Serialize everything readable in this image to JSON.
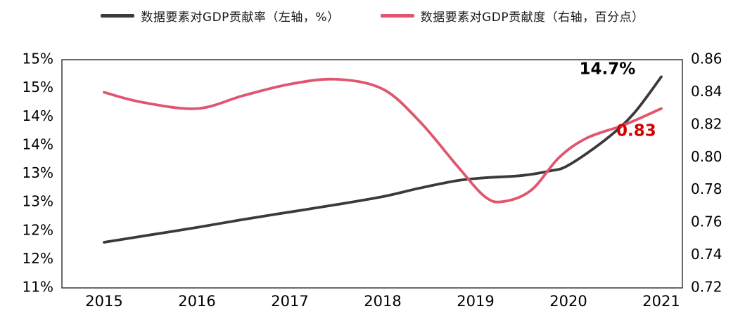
{
  "legend": [
    {
      "label": "数据要素对GDP贡献率（左轴，%）",
      "color": "#3a3a3a"
    },
    {
      "label": "数据要素对GDP贡献度（右轴，百分点）",
      "color": "#e0566f"
    }
  ],
  "chart_data": {
    "type": "line",
    "title": "",
    "x_ticks": [
      "2015",
      "2016",
      "2017",
      "2018",
      "2019",
      "2020",
      "2021"
    ],
    "left_axis": {
      "range": [
        11,
        15
      ],
      "ticks": [
        {
          "label": "15%",
          "value": 15
        },
        {
          "label": "15%",
          "value": 14.5
        },
        {
          "label": "14%",
          "value": 14
        },
        {
          "label": "14%",
          "value": 13.5
        },
        {
          "label": "13%",
          "value": 13
        },
        {
          "label": "13%",
          "value": 12.5
        },
        {
          "label": "12%",
          "value": 12
        },
        {
          "label": "12%",
          "value": 11.5
        },
        {
          "label": "11%",
          "value": 11
        }
      ]
    },
    "right_axis": {
      "range": [
        0.72,
        0.86
      ],
      "ticks": [
        {
          "label": "0.86",
          "value": 0.86
        },
        {
          "label": "0.84",
          "value": 0.84
        },
        {
          "label": "0.82",
          "value": 0.82
        },
        {
          "label": "0.80",
          "value": 0.8
        },
        {
          "label": "0.78",
          "value": 0.78
        },
        {
          "label": "0.76",
          "value": 0.76
        },
        {
          "label": "0.74",
          "value": 0.74
        },
        {
          "label": "0.72",
          "value": 0.72
        }
      ]
    },
    "series": [
      {
        "name": "数据要素对GDP贡献率（左轴，%）",
        "axis": "left",
        "color": "#3a3a3a",
        "points": [
          [
            2015,
            11.8
          ],
          [
            2015.5,
            11.93
          ],
          [
            2016,
            12.06
          ],
          [
            2016.5,
            12.2
          ],
          [
            2017,
            12.33
          ],
          [
            2017.5,
            12.46
          ],
          [
            2018,
            12.6
          ],
          [
            2018.4,
            12.75
          ],
          [
            2018.8,
            12.88
          ],
          [
            2019.1,
            12.93
          ],
          [
            2019.5,
            12.97
          ],
          [
            2019.8,
            13.05
          ],
          [
            2020,
            13.15
          ],
          [
            2020.4,
            13.6
          ],
          [
            2020.7,
            14.05
          ],
          [
            2021,
            14.7
          ]
        ]
      },
      {
        "name": "数据要素对GDP贡献度（右轴，百分点）",
        "axis": "right",
        "color": "#e0566f",
        "points": [
          [
            2015,
            0.84
          ],
          [
            2015.4,
            0.834
          ],
          [
            2016,
            0.83
          ],
          [
            2016.5,
            0.838
          ],
          [
            2017,
            0.845
          ],
          [
            2017.5,
            0.848
          ],
          [
            2018,
            0.842
          ],
          [
            2018.4,
            0.822
          ],
          [
            2018.8,
            0.795
          ],
          [
            2019.1,
            0.776
          ],
          [
            2019.3,
            0.773
          ],
          [
            2019.6,
            0.78
          ],
          [
            2019.9,
            0.8
          ],
          [
            2020.2,
            0.812
          ],
          [
            2020.6,
            0.82
          ],
          [
            2021,
            0.83
          ]
        ]
      }
    ],
    "annotations": [
      {
        "text": "14.7%",
        "x": 2020.42,
        "value": 14.83,
        "axis": "left",
        "color": "#000000"
      },
      {
        "text": "0.83",
        "x": 2020.73,
        "value": 0.816,
        "axis": "right",
        "color": "#d40000"
      }
    ]
  }
}
